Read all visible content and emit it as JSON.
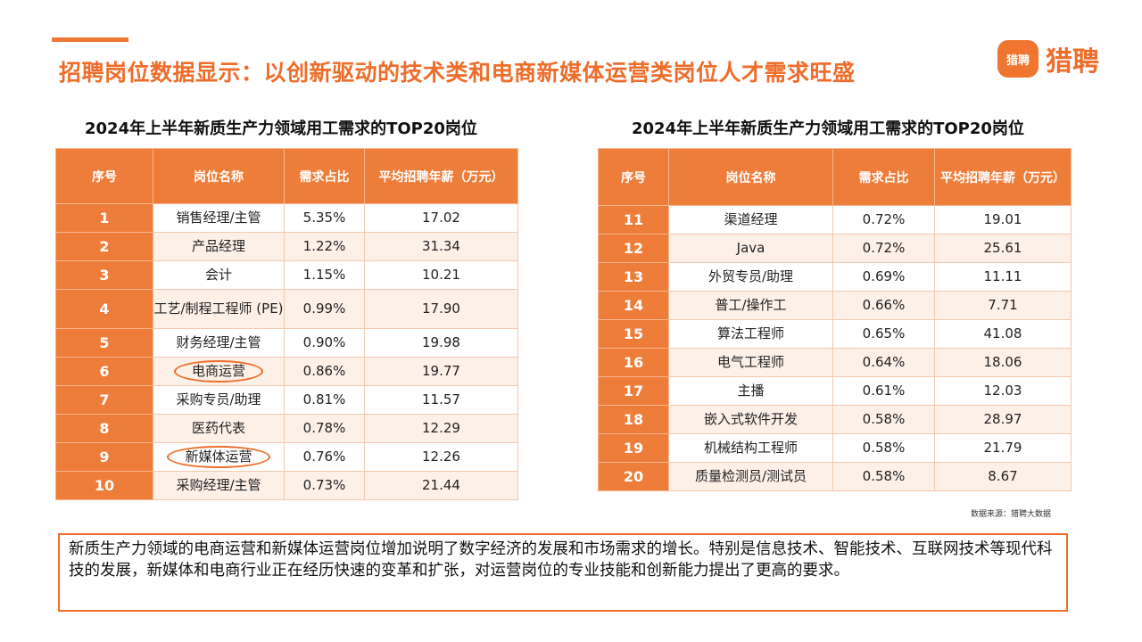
{
  "page": {
    "title": "招聘岗位数据显示：以创新驱动的技术类和电商新媒体运营类岗位人才需求旺盛",
    "accent_color": "#ee7a36"
  },
  "logo": {
    "badge_text": "猎聘",
    "text": "猎聘"
  },
  "left_table": {
    "title": "2024年上半年新质生产力领域用工需求的TOP20岗位",
    "headers": [
      "序号",
      "岗位名称",
      "需求占比",
      "平均招聘年薪（万元）"
    ],
    "rows": [
      {
        "no": "1",
        "name": "销售经理/主管",
        "share": "5.35%",
        "salary": "17.02",
        "circled": false
      },
      {
        "no": "2",
        "name": "产品经理",
        "share": "1.22%",
        "salary": "31.34",
        "circled": false
      },
      {
        "no": "3",
        "name": "会计",
        "share": "1.15%",
        "salary": "10.21",
        "circled": false
      },
      {
        "no": "4",
        "name": "工艺/制程工程师 (PE)",
        "share": "0.99%",
        "salary": "17.90",
        "circled": false
      },
      {
        "no": "5",
        "name": "财务经理/主管",
        "share": "0.90%",
        "salary": "19.98",
        "circled": false
      },
      {
        "no": "6",
        "name": "电商运营",
        "share": "0.86%",
        "salary": "19.77",
        "circled": true
      },
      {
        "no": "7",
        "name": "采购专员/助理",
        "share": "0.81%",
        "salary": "11.57",
        "circled": false
      },
      {
        "no": "8",
        "name": "医药代表",
        "share": "0.78%",
        "salary": "12.29",
        "circled": false
      },
      {
        "no": "9",
        "name": "新媒体运营",
        "share": "0.76%",
        "salary": "12.26",
        "circled": true
      },
      {
        "no": "10",
        "name": "采购经理/主管",
        "share": "0.73%",
        "salary": "21.44",
        "circled": false
      }
    ]
  },
  "right_table": {
    "title": "2024年上半年新质生产力领域用工需求的TOP20岗位",
    "headers": [
      "序号",
      "岗位名称",
      "需求占比",
      "平均招聘年薪（万元）"
    ],
    "rows": [
      {
        "no": "11",
        "name": "渠道经理",
        "share": "0.72%",
        "salary": "19.01"
      },
      {
        "no": "12",
        "name": "Java",
        "share": "0.72%",
        "salary": "25.61"
      },
      {
        "no": "13",
        "name": "外贸专员/助理",
        "share": "0.69%",
        "salary": "11.11"
      },
      {
        "no": "14",
        "name": "普工/操作工",
        "share": "0.66%",
        "salary": "7.71"
      },
      {
        "no": "15",
        "name": "算法工程师",
        "share": "0.65%",
        "salary": "41.08"
      },
      {
        "no": "16",
        "name": "电气工程师",
        "share": "0.64%",
        "salary": "18.06"
      },
      {
        "no": "17",
        "name": "主播",
        "share": "0.61%",
        "salary": "12.03"
      },
      {
        "no": "18",
        "name": "嵌入式软件开发",
        "share": "0.58%",
        "salary": "28.97"
      },
      {
        "no": "19",
        "name": "机械结构工程师",
        "share": "0.58%",
        "salary": "21.79"
      },
      {
        "no": "20",
        "name": "质量检测员/测试员",
        "share": "0.58%",
        "salary": "8.67"
      }
    ]
  },
  "source_note": "数据来源：猎聘大数据",
  "summary": "新质生产力领域的电商运营和新媒体运营岗位增加说明了数字经济的发展和市场需求的增长。特别是信息技术、智能技术、互联网技术等现代科技的发展，新媒体和电商行业正在经历快速的变革和扩张，对运营岗位的专业技能和创新能力提出了更高的要求。"
}
